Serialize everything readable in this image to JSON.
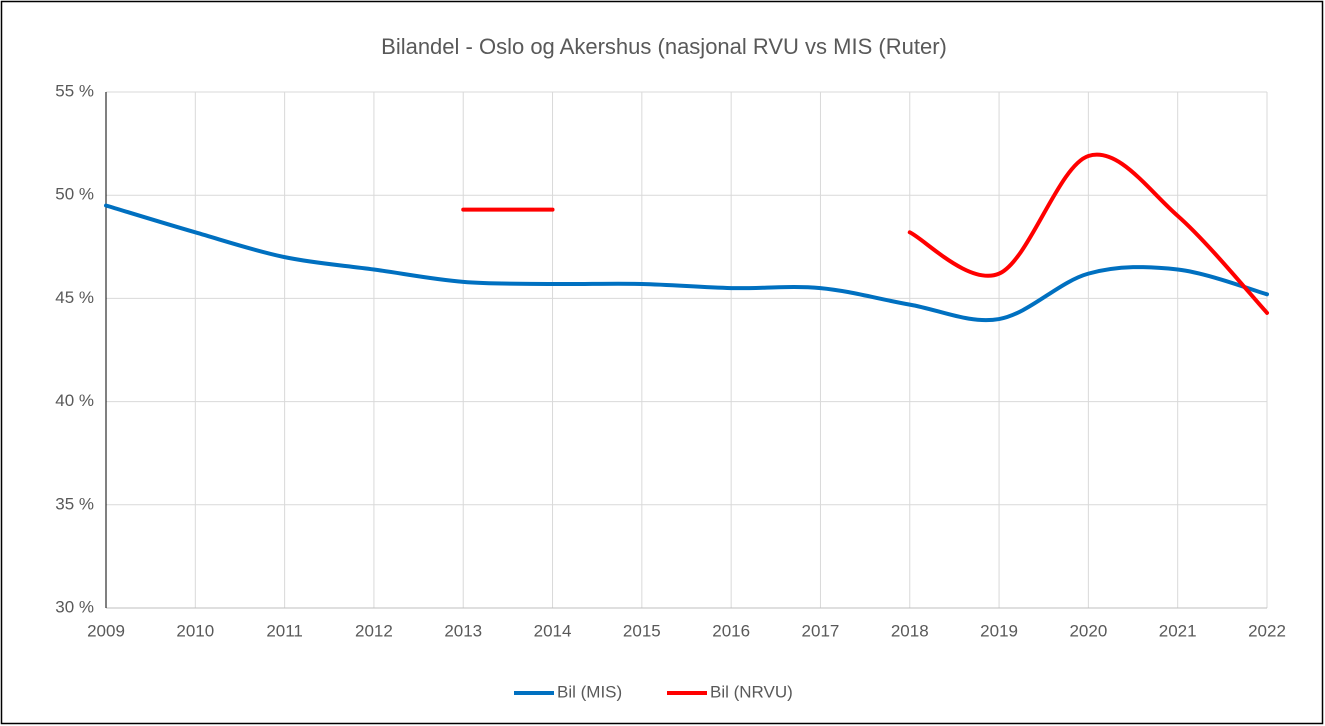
{
  "chart_data": {
    "type": "line",
    "title": "Bilandel - Oslo og Akershus (nasjonal RVU vs MIS (Ruter)",
    "x": [
      2009,
      2010,
      2011,
      2012,
      2013,
      2014,
      2015,
      2016,
      2017,
      2018,
      2019,
      2020,
      2021,
      2022
    ],
    "xlim": [
      2009,
      2022
    ],
    "xticks": [
      2009,
      2010,
      2011,
      2012,
      2013,
      2014,
      2015,
      2016,
      2017,
      2018,
      2019,
      2020,
      2021,
      2022
    ],
    "ylim": [
      30,
      55
    ],
    "yticks": [
      {
        "value": 30,
        "label": "30 %"
      },
      {
        "value": 35,
        "label": "35 %"
      },
      {
        "value": 40,
        "label": "40 %"
      },
      {
        "value": 45,
        "label": "45 %"
      },
      {
        "value": 50,
        "label": "50 %"
      },
      {
        "value": 55,
        "label": "55 %"
      }
    ],
    "grid": true,
    "smooth": true,
    "legend": "bottom",
    "series": [
      {
        "name": "Bil (MIS)",
        "color": "#0070c0",
        "values": [
          49.5,
          48.2,
          47.0,
          46.4,
          45.8,
          45.7,
          45.7,
          45.5,
          45.5,
          44.7,
          44.0,
          46.2,
          46.4,
          45.2
        ]
      },
      {
        "name": "Bil (NRVU)",
        "color": "#ff0000",
        "values": [
          null,
          null,
          null,
          null,
          49.3,
          49.3,
          null,
          null,
          null,
          48.2,
          46.2,
          51.9,
          49.0,
          44.3
        ]
      }
    ]
  }
}
